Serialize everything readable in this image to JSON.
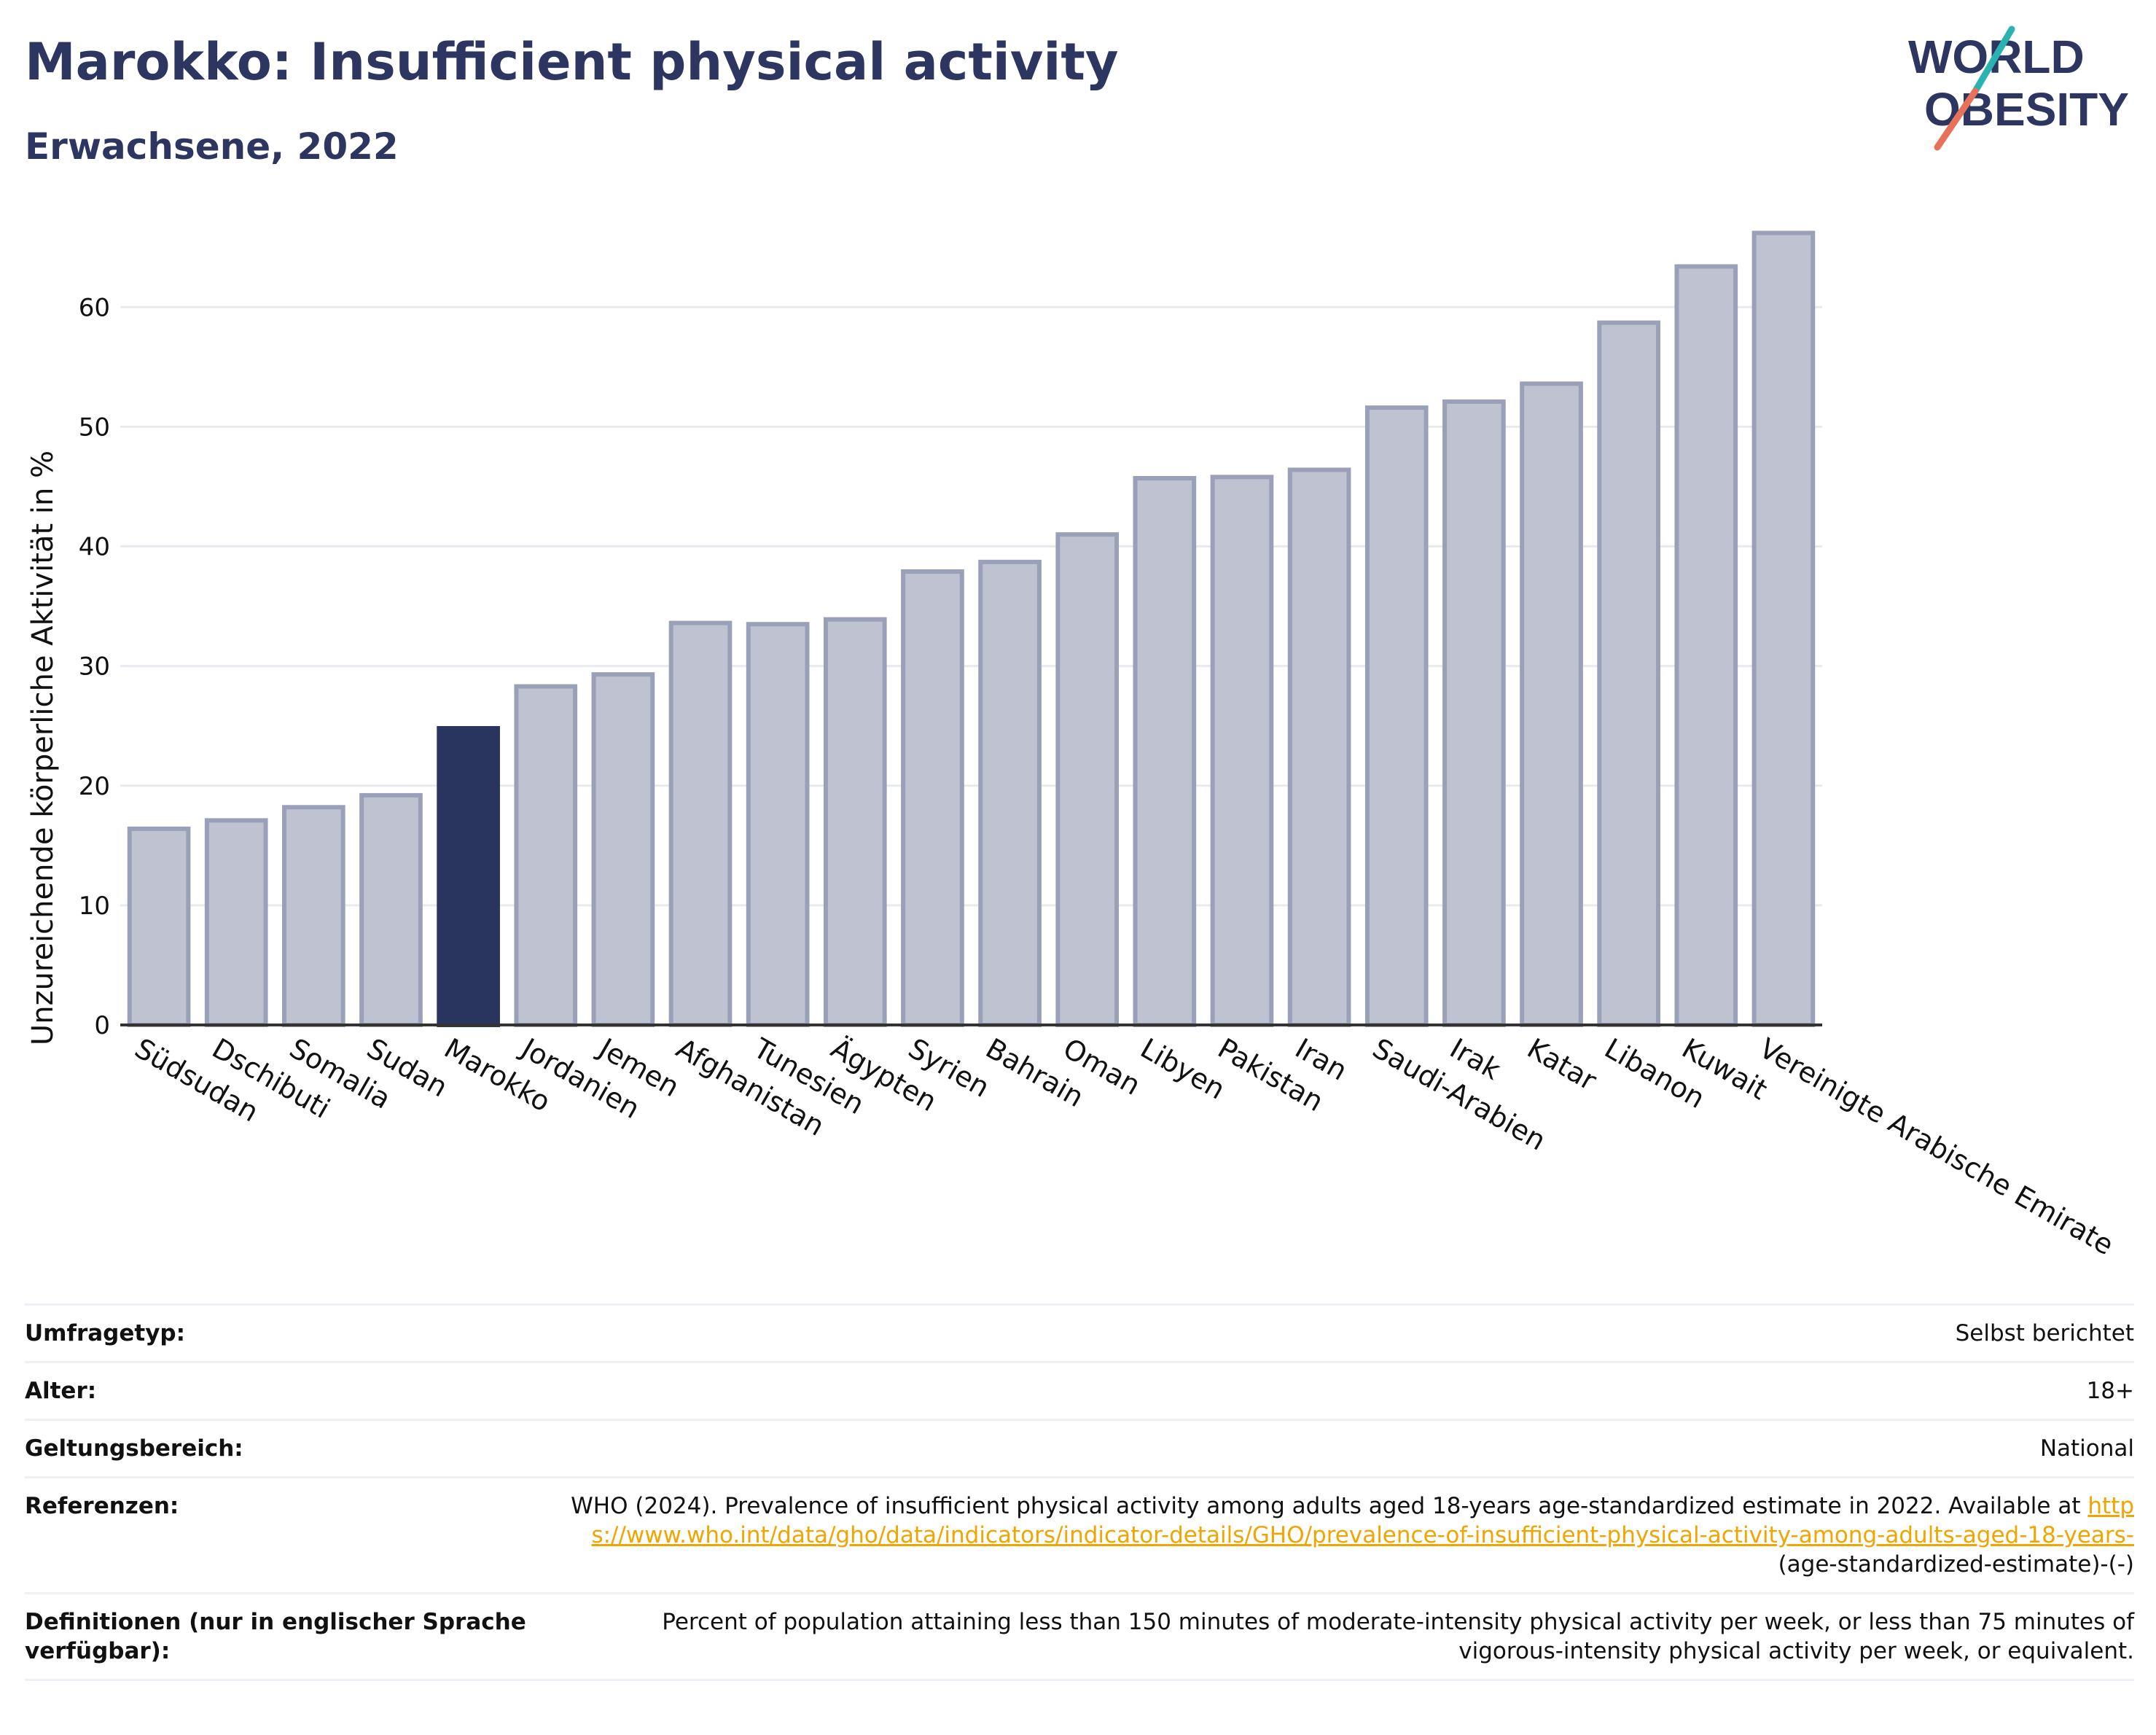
{
  "header": {
    "title": "Marokko: Insufficient physical activity",
    "subtitle": "Erwachsene, 2022"
  },
  "logo": {
    "line1": "WORLD",
    "line2": "OBESITY",
    "colors": {
      "text": "#2c3660",
      "slash_teal": "#2bb3b1",
      "slash_coral": "#e8715c"
    }
  },
  "colors": {
    "bar_default": "#bfc2d0",
    "bar_default_stroke": "#9aa0b8",
    "bar_highlight": "#2a355f",
    "grid": "#e8eaf0",
    "axis": "#333333"
  },
  "chart_data": {
    "type": "bar",
    "ylabel": "Unzureichende körperliche Aktivität in %",
    "xlabel": "",
    "ylim": [
      0,
      68
    ],
    "yticks": [
      0,
      10,
      20,
      30,
      40,
      50,
      60
    ],
    "grid": true,
    "highlight": "Marokko",
    "categories": [
      "Südsudan",
      "Dschibuti",
      "Somalia",
      "Sudan",
      "Marokko",
      "Jordanien",
      "Jemen",
      "Afghanistan",
      "Tunesien",
      "Ägypten",
      "Syrien",
      "Bahrain",
      "Oman",
      "Libyen",
      "Pakistan",
      "Iran",
      "Saudi-Arabien",
      "Irak",
      "Katar",
      "Libanon",
      "Kuwait",
      "Vereinigte Arabische Emirate"
    ],
    "values": [
      16.4,
      17.1,
      18.2,
      19.2,
      24.8,
      28.3,
      29.3,
      33.6,
      33.5,
      33.9,
      37.9,
      38.7,
      41.0,
      45.7,
      45.8,
      46.4,
      51.6,
      52.1,
      53.6,
      58.7,
      63.4,
      66.2
    ]
  },
  "info": {
    "rows": [
      {
        "key": "Umfragetyp:",
        "value": "Selbst berichtet"
      },
      {
        "key": "Alter:",
        "value": "18+"
      },
      {
        "key": "Geltungsbereich:",
        "value": "National"
      }
    ],
    "references": {
      "key": "Referenzen:",
      "text": "WHO (2024). Prevalence of insufficient physical activity among adults aged 18-years age-standardized estimate in 2022. Available at",
      "link": "https://www.who.int/data/gho/data/indicators/indicator-details/GHO/prevalence-of-insufficient-physical-activity-among-adults-aged-18-years-",
      "suffix": "(age-standardized-estimate)-(-)"
    },
    "definitions": {
      "key": "Definitionen (nur in englischer Sprache verfügbar):",
      "value": "Percent of population attaining less than 150 minutes of moderate-intensity physical activity per week, or less than 75 minutes of vigorous-intensity physical activity per week, or equivalent."
    }
  }
}
